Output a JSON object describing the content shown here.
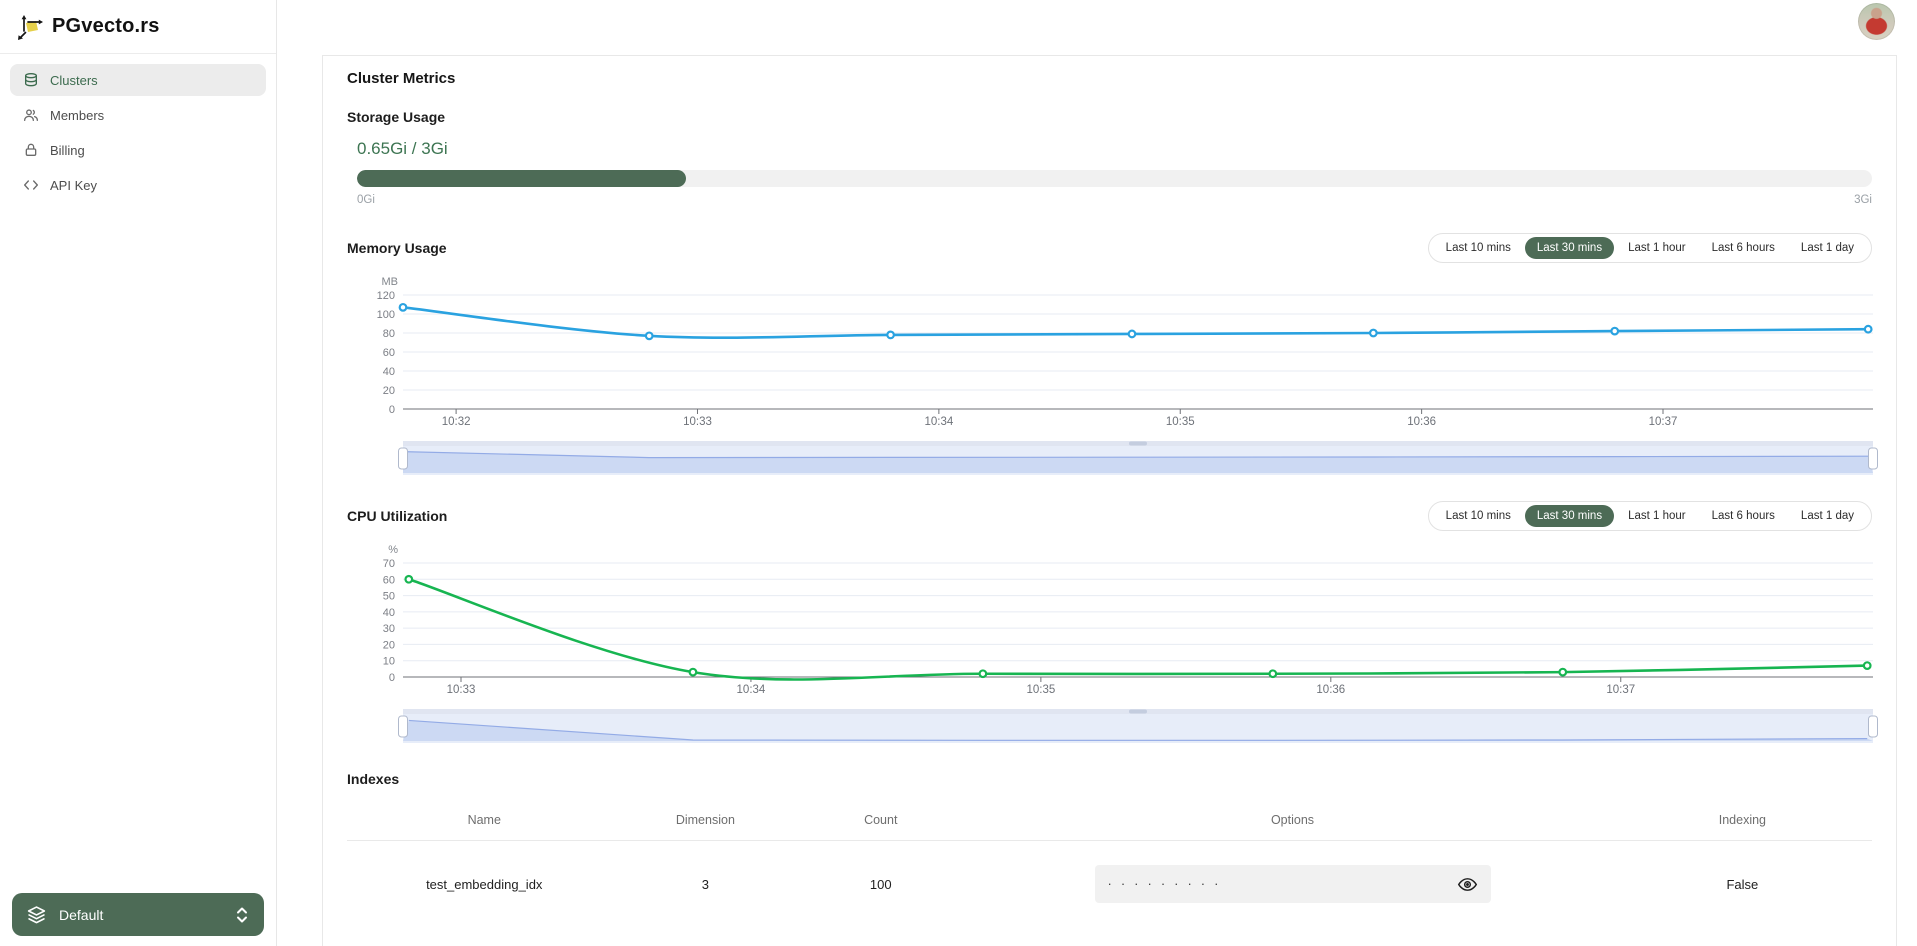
{
  "brand": {
    "name": "PGvecto.rs",
    "logo_icon": "vector-cube-logo-icon"
  },
  "sidebar": {
    "items": [
      {
        "label": "Clusters",
        "icon": "database-icon",
        "active": true
      },
      {
        "label": "Members",
        "icon": "members-icon",
        "active": false
      },
      {
        "label": "Billing",
        "icon": "lock-icon",
        "active": false
      },
      {
        "label": "API Key",
        "icon": "code-icon",
        "active": false
      }
    ],
    "cluster_selector": {
      "label": "Default",
      "icon": "layers-icon",
      "chevron": "unfold-icon"
    }
  },
  "page": {
    "title": "Cluster Metrics"
  },
  "storage": {
    "heading": "Storage Usage",
    "value_label": "0.65Gi / 3Gi",
    "used_gi": 0.65,
    "total_gi": 3,
    "min_label": "0Gi",
    "max_label": "3Gi"
  },
  "time_ranges": [
    "Last 10 mins",
    "Last 30 mins",
    "Last 1 hour",
    "Last 6 hours",
    "Last 1 day"
  ],
  "time_range_selected": "Last 30 mins",
  "chart_data": [
    {
      "type": "line",
      "title": "Memory Usage",
      "ylabel": "MB",
      "ylim": [
        0,
        120
      ],
      "ytick_step": 20,
      "grid": true,
      "legend_position": "none",
      "x_tick_labels": [
        "10:32",
        "10:33",
        "10:34",
        "10:35",
        "10:36",
        "10:37"
      ],
      "x_tick_minutes": [
        632,
        633,
        634,
        635,
        636,
        637
      ],
      "x_domain_minutes": [
        631.78,
        637.87
      ],
      "x_minutes": [
        631.78,
        632.8,
        633.8,
        634.8,
        635.8,
        636.8,
        637.85
      ],
      "values": [
        107,
        77,
        78,
        79,
        80,
        82,
        84
      ],
      "line_color": "#2aa2e0",
      "has_zoom_slider": true
    },
    {
      "type": "line",
      "title": "CPU Utilization",
      "ylabel": "%",
      "ylim": [
        0,
        70
      ],
      "ytick_step": 10,
      "grid": true,
      "legend_position": "none",
      "x_tick_labels": [
        "10:33",
        "10:34",
        "10:35",
        "10:36",
        "10:37"
      ],
      "x_tick_minutes": [
        633,
        634,
        635,
        636,
        637
      ],
      "x_domain_minutes": [
        632.8,
        637.87
      ],
      "x_minutes": [
        632.82,
        633.8,
        634.8,
        635.8,
        636.8,
        637.85
      ],
      "values": [
        60,
        3,
        2,
        2,
        3,
        7
      ],
      "line_color": "#17b551",
      "has_zoom_slider": true
    }
  ],
  "indexes": {
    "heading": "Indexes",
    "columns": [
      "Name",
      "Dimension",
      "Count",
      "Options",
      "Indexing"
    ],
    "rows": [
      {
        "name": "test_embedding_idx",
        "dimension": "3",
        "count": "100",
        "options_masked": "·········",
        "options_icon": "eye-icon",
        "indexing": "False"
      }
    ]
  },
  "colors": {
    "accent_green": "#4d6b56",
    "green_text": "#3d7552",
    "active_item_green": "#3c6b4e",
    "memory_line_blue": "#2aa2e0",
    "cpu_line_green": "#17b551",
    "grid_line": "#e7ebf3",
    "axis_line": "#6f7277",
    "axis_text": "#82868c",
    "brush_body": "#e7edf9",
    "brush_area": "#ccd9f3",
    "brush_line": "#93abe6",
    "logo_yellow": "#e5d04a"
  }
}
